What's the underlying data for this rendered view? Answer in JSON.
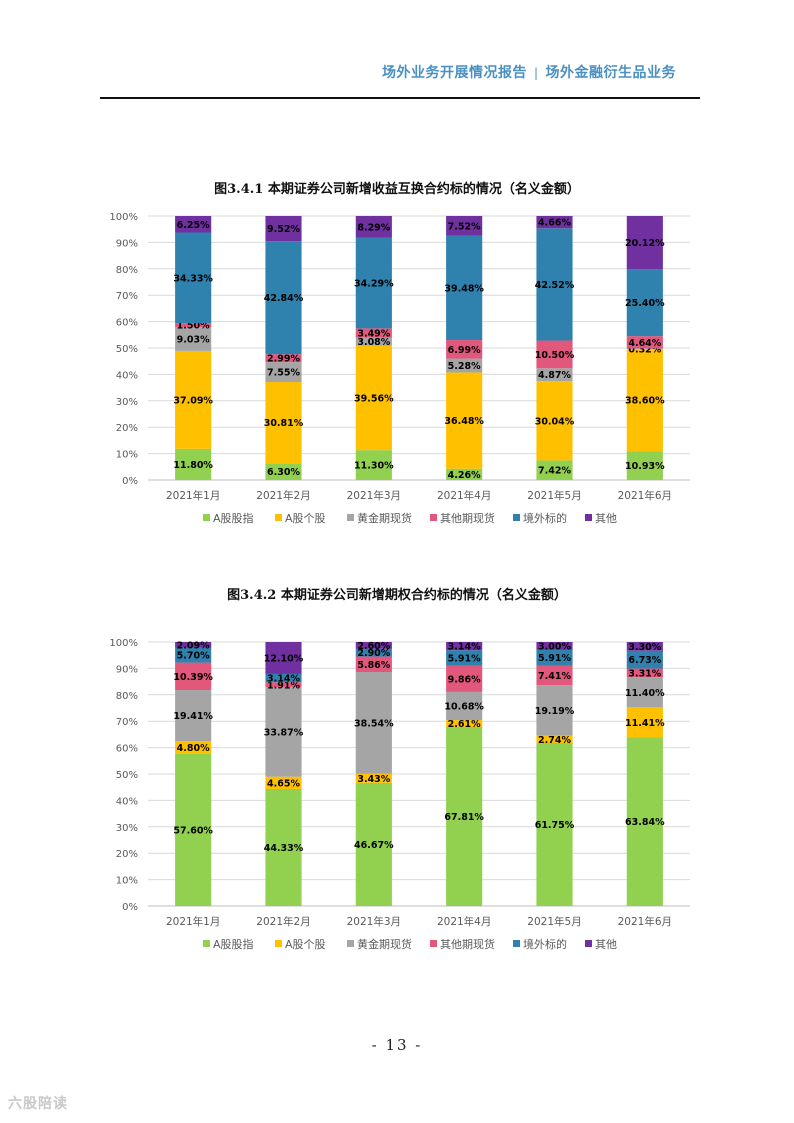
{
  "header": {
    "report_title": "场外业务开展情况报告",
    "section_title": "场外金融衍生品业务",
    "separator": "|"
  },
  "page_number": "- 13 -",
  "watermark": "六股陪读",
  "colors": {
    "A股股指": "#92d050",
    "A股个股": "#ffc000",
    "黄金期现货": "#a5a5a5",
    "其他期现货": "#e2577c",
    "境外标的": "#2e82ad",
    "其他": "#7030a0"
  },
  "chart_data": [
    {
      "type": "bar",
      "stacked": true,
      "title": "图3.4.1 本期证券公司新增收益互换合约标的情况（名义金额）",
      "categories": [
        "2021年1月",
        "2021年2月",
        "2021年3月",
        "2021年4月",
        "2021年5月",
        "2021年6月"
      ],
      "ylim": [
        0,
        100
      ],
      "y_ticks": [
        "0%",
        "10%",
        "20%",
        "30%",
        "40%",
        "50%",
        "60%",
        "70%",
        "80%",
        "90%",
        "100%"
      ],
      "grid": true,
      "legend_position": "bottom",
      "series": [
        {
          "name": "A股股指",
          "values": [
            11.8,
            6.3,
            11.3,
            4.26,
            7.42,
            10.93
          ],
          "labels": [
            "11.80%",
            "6.30%",
            "11.30%",
            "4.26%",
            "7.42%",
            "10.93%"
          ]
        },
        {
          "name": "A股个股",
          "values": [
            37.09,
            30.81,
            39.56,
            36.48,
            30.04,
            38.6
          ],
          "labels": [
            "37.09%",
            "30.81%",
            "39.56%",
            "36.48%",
            "30.04%",
            "38.60%"
          ]
        },
        {
          "name": "黄金期现货",
          "values": [
            9.03,
            7.55,
            3.08,
            5.28,
            4.87,
            0.32
          ],
          "labels": [
            "9.03%",
            "7.55%",
            "3.08%",
            "5.28%",
            "4.87%",
            "0.32%"
          ]
        },
        {
          "name": "其他期现货",
          "values": [
            1.5,
            2.99,
            3.49,
            6.99,
            10.5,
            4.64
          ],
          "labels": [
            "1.50%",
            "2.99%",
            "3.49%",
            "6.99%",
            "10.50%",
            "4.64%"
          ]
        },
        {
          "name": "境外标的",
          "values": [
            34.33,
            42.84,
            34.29,
            39.48,
            42.52,
            25.4
          ],
          "labels": [
            "34.33%",
            "42.84%",
            "34.29%",
            "39.48%",
            "42.52%",
            "25.40%"
          ]
        },
        {
          "name": "其他",
          "values": [
            6.25,
            9.52,
            8.29,
            7.52,
            4.66,
            20.12
          ],
          "labels": [
            "6.25%",
            "9.52%",
            "8.29%",
            "7.52%",
            "4.66%",
            "20.12%"
          ]
        }
      ]
    },
    {
      "type": "bar",
      "stacked": true,
      "title": "图3.4.2 本期证券公司新增期权合约标的情况（名义金额）",
      "categories": [
        "2021年1月",
        "2021年2月",
        "2021年3月",
        "2021年4月",
        "2021年5月",
        "2021年6月"
      ],
      "ylim": [
        0,
        100
      ],
      "y_ticks": [
        "0%",
        "10%",
        "20%",
        "30%",
        "40%",
        "50%",
        "60%",
        "70%",
        "80%",
        "90%",
        "100%"
      ],
      "grid": true,
      "legend_position": "bottom",
      "series": [
        {
          "name": "A股股指",
          "values": [
            57.6,
            44.33,
            46.67,
            67.81,
            61.75,
            63.84
          ],
          "labels": [
            "57.60%",
            "44.33%",
            "46.67%",
            "67.81%",
            "61.75%",
            "63.84%"
          ]
        },
        {
          "name": "A股个股",
          "values": [
            4.8,
            4.65,
            3.43,
            2.61,
            2.74,
            11.41
          ],
          "labels": [
            "4.80%",
            "4.65%",
            "3.43%",
            "2.61%",
            "2.74%",
            "11.41%"
          ]
        },
        {
          "name": "黄金期现货",
          "values": [
            19.41,
            33.87,
            38.54,
            10.68,
            19.19,
            11.4
          ],
          "labels": [
            "19.41%",
            "33.87%",
            "38.54%",
            "10.68%",
            "19.19%",
            "11.40%"
          ]
        },
        {
          "name": "其他期现货",
          "values": [
            10.39,
            1.91,
            5.86,
            9.86,
            7.41,
            3.31
          ],
          "labels": [
            "10.39%",
            "1.91%",
            "5.86%",
            "9.86%",
            "7.41%",
            "3.31%"
          ]
        },
        {
          "name": "境外标的",
          "values": [
            5.7,
            3.14,
            2.9,
            5.91,
            5.91,
            6.73
          ],
          "labels": [
            "5.70%",
            "3.14%",
            "2.90%",
            "5.91%",
            "5.91%",
            "6.73%"
          ]
        },
        {
          "name": "其他",
          "values": [
            2.09,
            12.1,
            2.6,
            3.14,
            3.0,
            3.3
          ],
          "labels": [
            "2.09%",
            "12.10%",
            "2.60%",
            "3.14%",
            "3.00%",
            "3.30%"
          ]
        }
      ]
    }
  ]
}
